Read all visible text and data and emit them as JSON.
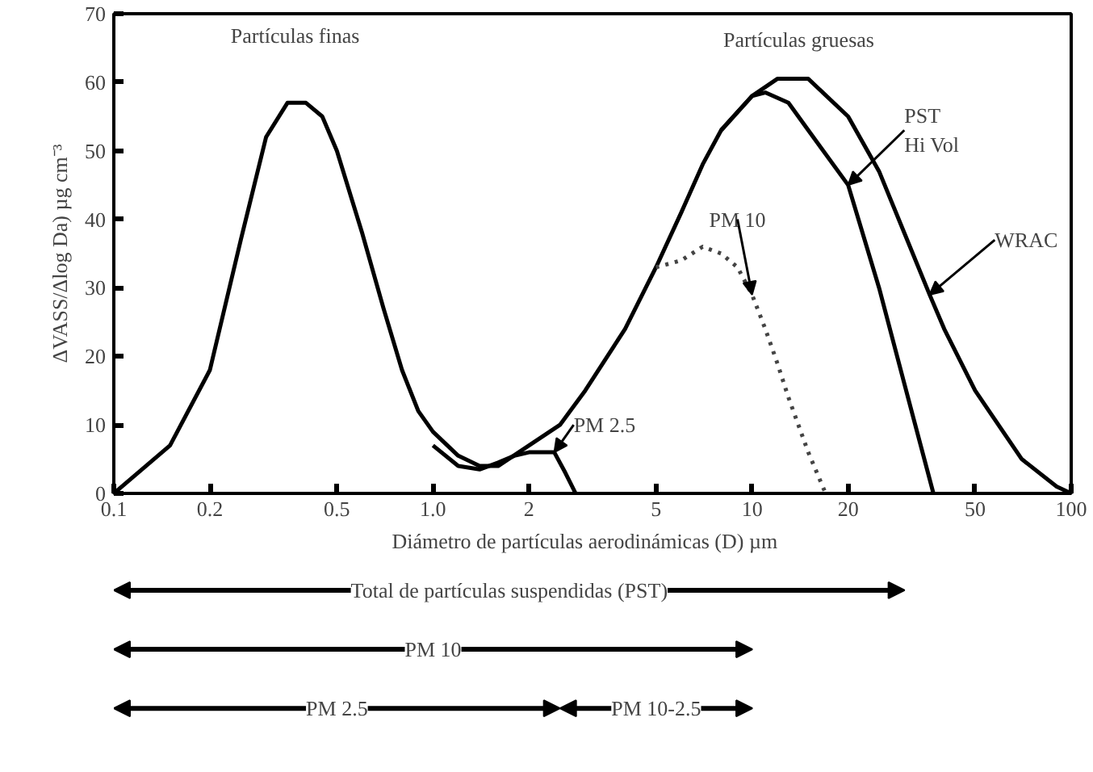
{
  "chart_data": {
    "type": "line",
    "xlabel": "Diámetro de partículas aerodinámicas (D)    µm",
    "ylabel": "ΔVASS/Δlog Da) µg cm⁻³",
    "log": "x",
    "xlim": [
      0.1,
      100
    ],
    "ylim": [
      0,
      70
    ],
    "xticks": [
      0.1,
      0.2,
      0.5,
      {
        "value": 1,
        "label": "1.0"
      },
      2,
      5,
      10,
      20,
      50,
      100
    ],
    "yticks": [
      0,
      10,
      20,
      30,
      40,
      50,
      60,
      70
    ],
    "grid": false,
    "marker": "none",
    "line_style": "solid",
    "series": [
      {
        "color": "#000000",
        "x": [
          0.1,
          0.15,
          0.2,
          0.25,
          0.3,
          0.35,
          0.4,
          0.45,
          0.5,
          0.6,
          0.7,
          0.8,
          0.9,
          1.0,
          1.2,
          1.4,
          1.6,
          2,
          2.5,
          3,
          4,
          5,
          6,
          7,
          8,
          10,
          12,
          15,
          20,
          25,
          30,
          36,
          40,
          50,
          70,
          90,
          100
        ],
        "values": [
          0,
          7,
          18,
          37,
          52,
          57,
          57,
          55,
          50,
          38,
          27,
          18,
          12,
          9,
          5.5,
          4,
          4,
          7,
          10,
          15,
          24,
          33,
          41,
          48,
          53,
          58,
          60.5,
          60.5,
          55,
          47,
          38,
          29,
          24,
          15,
          5,
          1,
          0
        ]
      },
      {
        "color": "#000000",
        "x": [
          8,
          10,
          11,
          13,
          15,
          20,
          25,
          30,
          37
        ],
        "values": [
          53,
          58,
          58.5,
          57,
          53,
          45,
          30,
          16,
          0
        ]
      },
      {
        "color": "#444444",
        "line_style": "dotted",
        "x": [
          5,
          6,
          7,
          8,
          9,
          10,
          11,
          12,
          13,
          15,
          17
        ],
        "values": [
          33,
          34,
          36,
          35,
          33,
          29,
          24,
          19,
          14,
          6,
          0
        ]
      },
      {
        "color": "#000000",
        "x": [
          1.0,
          1.2,
          1.4,
          1.6,
          1.8,
          2.0,
          2.2,
          2.4,
          2.6,
          2.8
        ],
        "values": [
          7,
          4,
          3.5,
          4.5,
          5.5,
          6,
          6,
          6,
          3,
          0
        ]
      }
    ],
    "annotations": [
      {
        "text": "Partículas finas",
        "x": 0.37,
        "y": 57
      },
      {
        "text": "Partículas gruesas",
        "x": 14,
        "y": 60.5
      },
      {
        "text": "PST\nHi Vol",
        "x": 20,
        "y": 45
      },
      {
        "text": "WRAC",
        "x": 36,
        "y": 29
      },
      {
        "text": "PM 10",
        "x": 10,
        "y": 29
      },
      {
        "text": "PM 2.5",
        "x": 2.4,
        "y": 6
      },
      "Total de partículas suspendidas (PST)",
      "PM 10",
      "PM 2.5",
      "PM 10-2.5"
    ]
  }
}
